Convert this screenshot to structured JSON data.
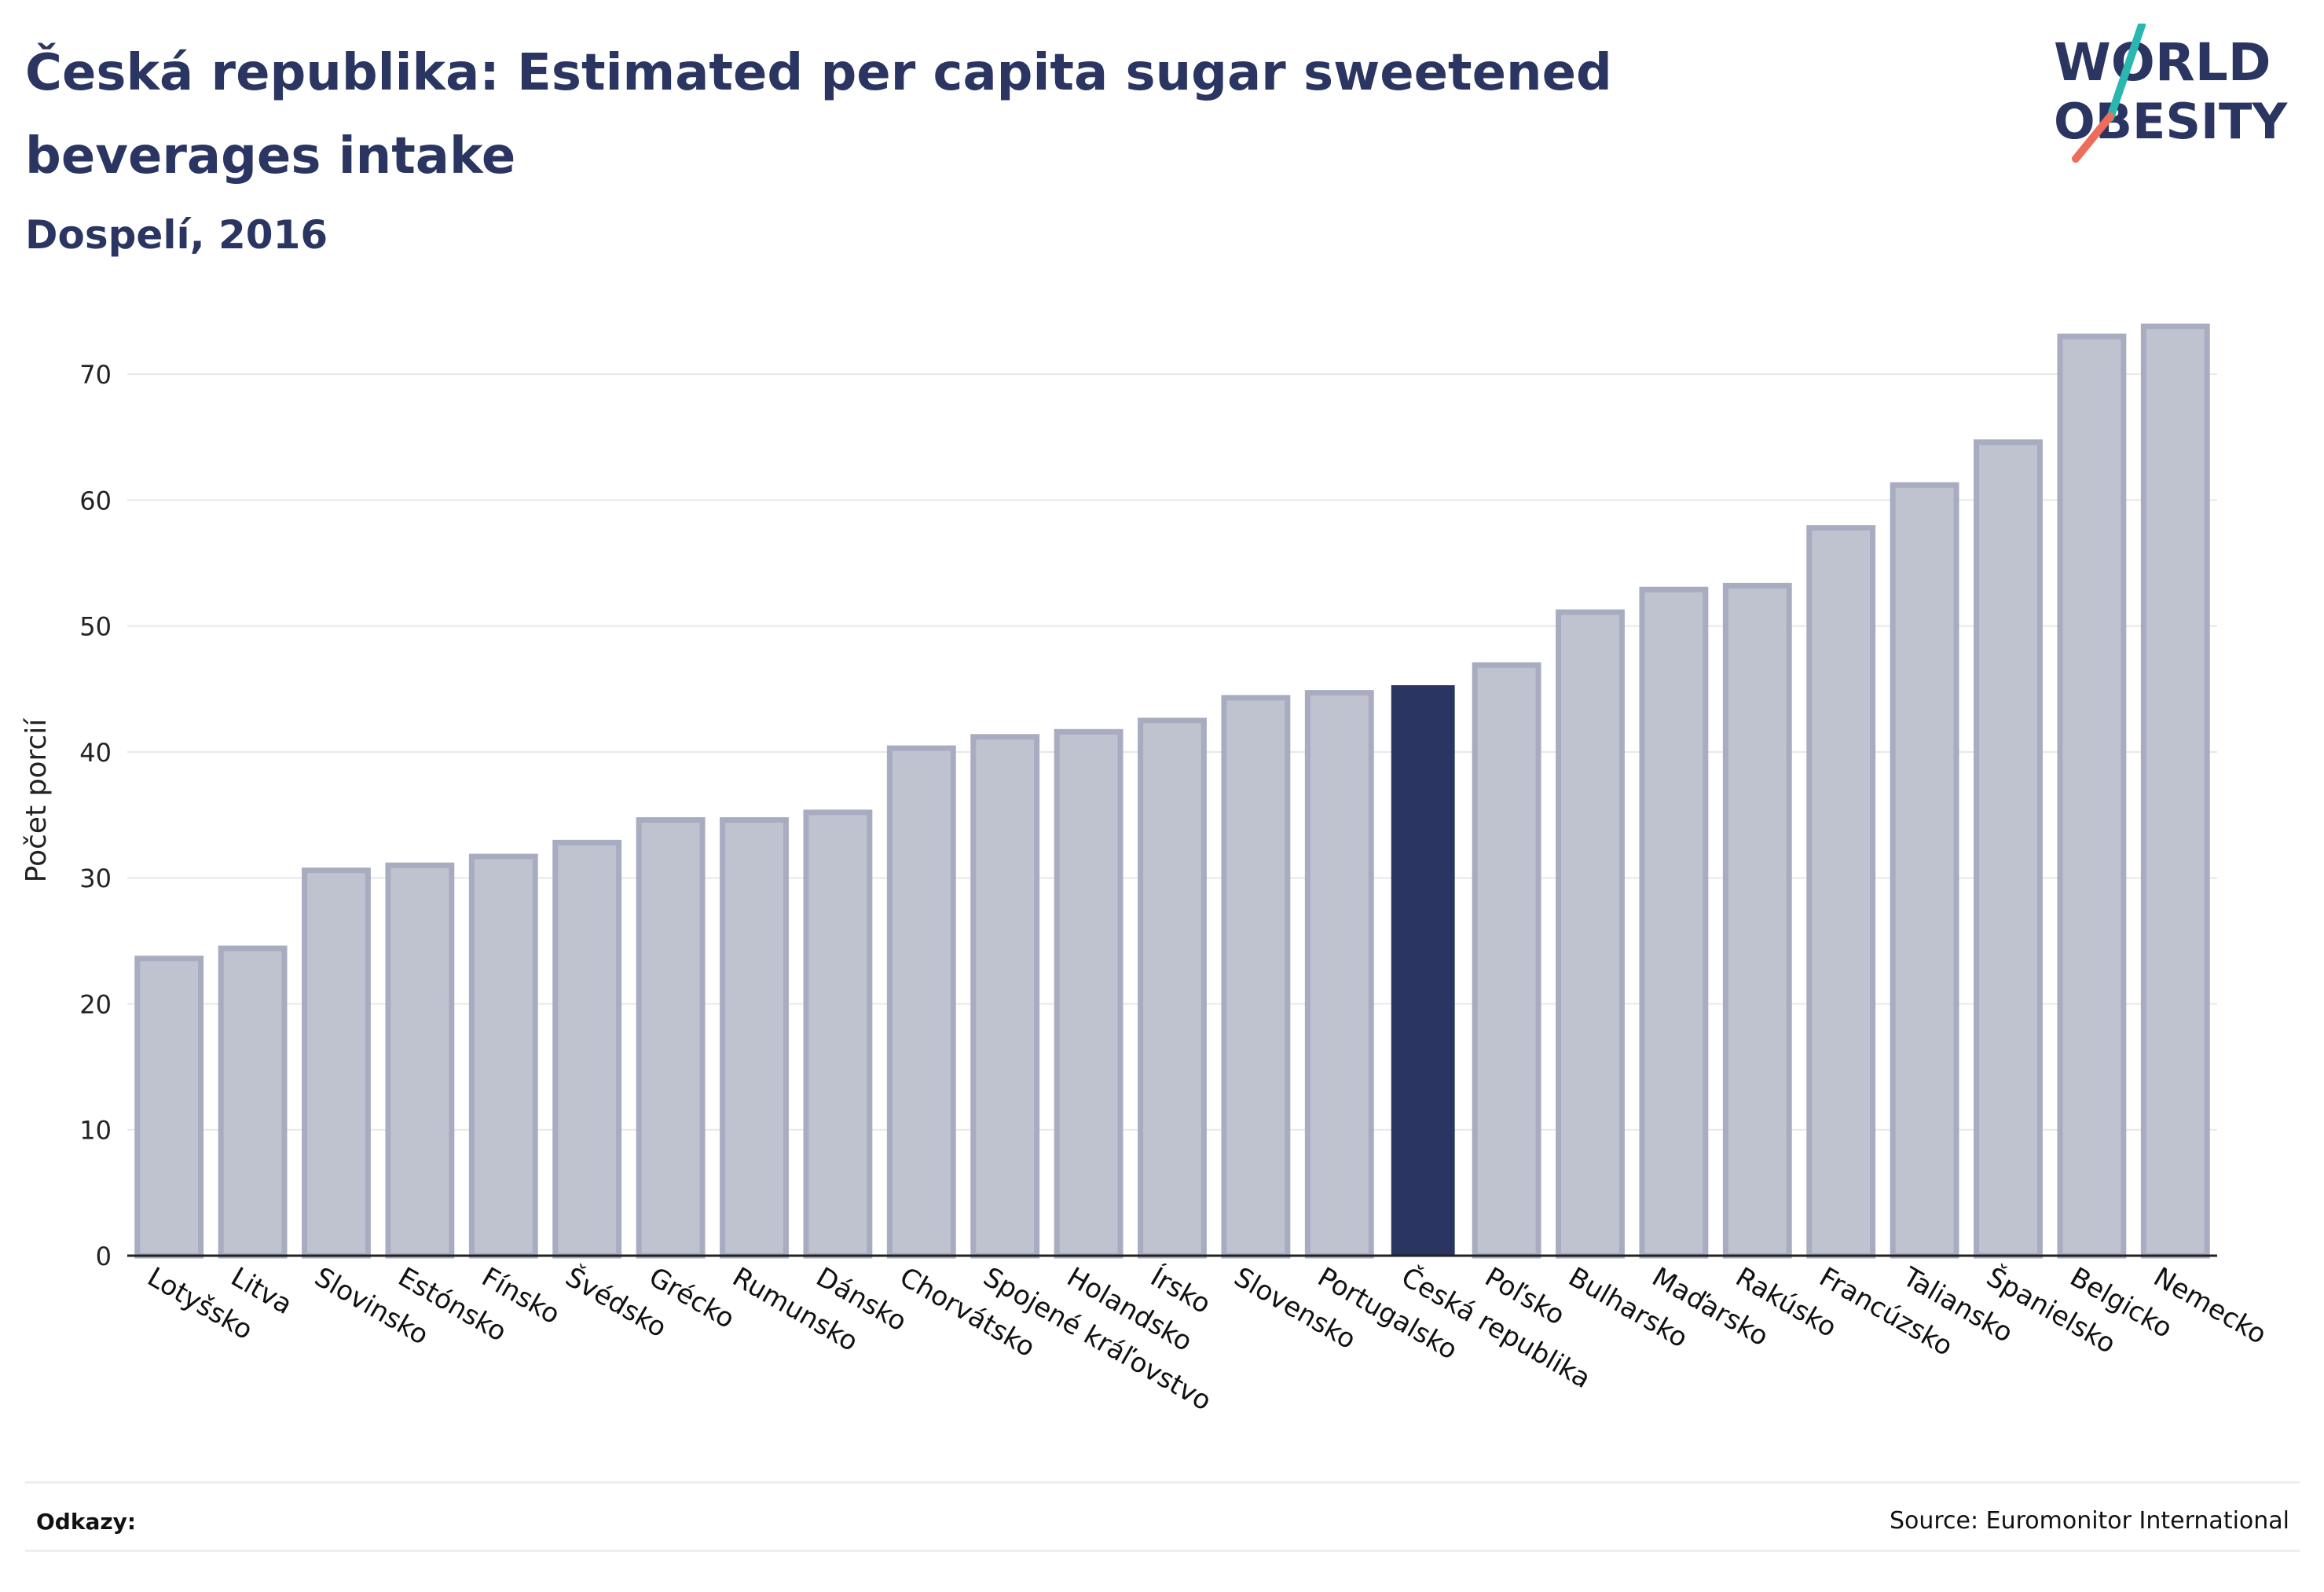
{
  "header": {
    "title": "Česká republika: Estimated per capita sugar sweetened beverages intake",
    "subtitle": "Dospelí, 2016"
  },
  "logo": {
    "line1": "WORLD",
    "line2": "OBESITY"
  },
  "footer": {
    "references_label": "Odkazy:",
    "source": "Source: Euromonitor International"
  },
  "colors": {
    "bar": "#bfc2cf",
    "bar_border": "#a8acc0",
    "highlight": "#2b3561",
    "text": "#2b3561",
    "logo_slash_top": "#2ab7b0",
    "logo_slash_bottom": "#ee6c5a"
  },
  "chart_data": {
    "type": "bar",
    "title": "Česká republika: Estimated per capita sugar sweetened beverages intake",
    "subtitle": "Dospelí, 2016",
    "xlabel": "",
    "ylabel": "Počet porcií",
    "ylim": [
      0,
      76
    ],
    "yticks": [
      0,
      10,
      20,
      30,
      40,
      50,
      60,
      70
    ],
    "grid": true,
    "highlight_category": "Česká republika",
    "categories": [
      "Lotyšsko",
      "Litva",
      "Slovinsko",
      "Estónsko",
      "Fínsko",
      "Švédsko",
      "Grécko",
      "Rumunsko",
      "Dánsko",
      "Chorvátsko",
      "Spojené kráľovstvo",
      "Holandsko",
      "Írsko",
      "Slovensko",
      "Portugalsko",
      "Česká republika",
      "Poľsko",
      "Bulharsko",
      "Maďarsko",
      "Rakúsko",
      "Francúzsko",
      "Taliansko",
      "Španielsko",
      "Belgicko",
      "Nemecko"
    ],
    "values": [
      23.6,
      24.4,
      30.6,
      31.0,
      31.7,
      32.8,
      34.6,
      34.6,
      35.2,
      40.3,
      41.2,
      41.6,
      42.5,
      44.3,
      44.7,
      45.3,
      46.9,
      51.1,
      52.9,
      53.2,
      57.8,
      61.2,
      64.6,
      73.0,
      73.8
    ]
  }
}
